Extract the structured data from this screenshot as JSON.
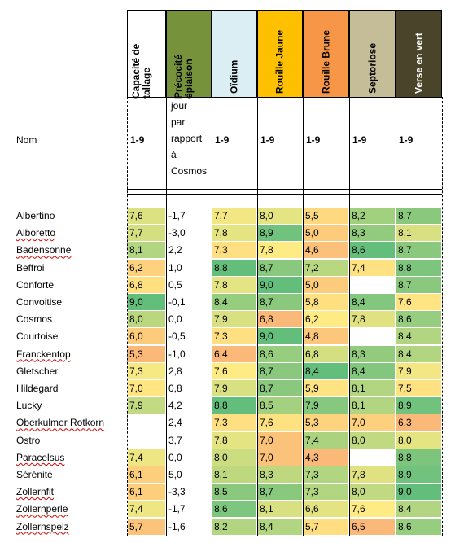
{
  "header": {
    "name_label": "Nom",
    "columns": [
      {
        "key": "tallage",
        "label": "Capacité de tallage",
        "bg": "#ffffff",
        "fg": "#000000"
      },
      {
        "key": "precocite",
        "label": "Précocité épiaison",
        "bg": "#76933c",
        "fg": "#000000"
      },
      {
        "key": "oidium",
        "label": "Oïdium",
        "bg": "#daeef3",
        "fg": "#000000"
      },
      {
        "key": "rouille_jaune",
        "label": "Rouille Jaune",
        "bg": "#ffc000",
        "fg": "#000000"
      },
      {
        "key": "rouille_brune",
        "label": "Rouille Brune",
        "bg": "#f79646",
        "fg": "#000000"
      },
      {
        "key": "septoriose",
        "label": "Septoriose",
        "bg": "#c4bd97",
        "fg": "#000000"
      },
      {
        "key": "verse",
        "label": "Verse en vert",
        "bg": "#4a452a",
        "fg": "#ffffff"
      }
    ],
    "units": [
      "1-9",
      "jour par rapport à Cosmos",
      "1-9",
      "1-9",
      "1-9",
      "1-9",
      "1-9"
    ],
    "units_precocite_lines": [
      "jour",
      "par",
      "rapport",
      "à",
      "Cosmos"
    ]
  },
  "rows": [
    {
      "name": "Albertino",
      "spell": false,
      "tallage": "7,6",
      "precocite": "-1,7",
      "oidium": "7,7",
      "rouille_jaune": "8,0",
      "rouille_brune": "5,5",
      "septoriose": "8,2",
      "verse": "8,7"
    },
    {
      "name": "Alboretto",
      "spell": true,
      "tallage": "7,7",
      "precocite": "-3,0",
      "oidium": "7,8",
      "rouille_jaune": "8,9",
      "rouille_brune": "5,0",
      "septoriose": "8,3",
      "verse": "8,1"
    },
    {
      "name": "Badensonne",
      "spell": true,
      "tallage": "8,1",
      "precocite": "2,2",
      "oidium": "7,3",
      "rouille_jaune": "7,8",
      "rouille_brune": "4,6",
      "septoriose": "8,6",
      "verse": "8,7"
    },
    {
      "name": "Beffroi",
      "spell": false,
      "tallage": "6,2",
      "precocite": "1,0",
      "oidium": "8,8",
      "rouille_jaune": "8,7",
      "rouille_brune": "7,2",
      "septoriose": "7,4",
      "verse": "8,8"
    },
    {
      "name": "Conforte",
      "spell": false,
      "tallage": "6,8",
      "precocite": "0,5",
      "oidium": "7,8",
      "rouille_jaune": "9,0",
      "rouille_brune": "5,0",
      "septoriose": "",
      "verse": "8,7"
    },
    {
      "name": "Convoitise",
      "spell": false,
      "tallage": "9,0",
      "precocite": "-0,1",
      "oidium": "8,4",
      "rouille_jaune": "8,7",
      "rouille_brune": "5,8",
      "septoriose": "8,4",
      "verse": "7,6"
    },
    {
      "name": "Cosmos",
      "spell": false,
      "tallage": "8,0",
      "precocite": "0,0",
      "oidium": "7,9",
      "rouille_jaune": "6,8",
      "rouille_brune": "6,2",
      "septoriose": "7,8",
      "verse": "8,6"
    },
    {
      "name": "Courtoise",
      "spell": false,
      "tallage": "6,0",
      "precocite": "-0,5",
      "oidium": "7,3",
      "rouille_jaune": "9,0",
      "rouille_brune": "4,8",
      "septoriose": "",
      "verse": "8,4"
    },
    {
      "name": "Franckentop",
      "spell": true,
      "tallage": "5,3",
      "precocite": "-1,0",
      "oidium": "6,4",
      "rouille_jaune": "8,6",
      "rouille_brune": "6,8",
      "septoriose": "8,3",
      "verse": "8,4"
    },
    {
      "name": "Gletscher",
      "spell": false,
      "tallage": "7,3",
      "precocite": "2,8",
      "oidium": "7,6",
      "rouille_jaune": "8,7",
      "rouille_brune": "8,4",
      "septoriose": "8,4",
      "verse": "7,9"
    },
    {
      "name": "Hildegard",
      "spell": false,
      "tallage": "7,0",
      "precocite": "0,8",
      "oidium": "7,9",
      "rouille_jaune": "8,7",
      "rouille_brune": "5,9",
      "septoriose": "8,1",
      "verse": "7,5"
    },
    {
      "name": "Lucky",
      "spell": false,
      "tallage": "7,9",
      "precocite": "4,2",
      "oidium": "8,8",
      "rouille_jaune": "8,5",
      "rouille_brune": "7,9",
      "septoriose": "8,1",
      "verse": "8,9"
    },
    {
      "name": "Oberkulmer Rotkorn",
      "spell": true,
      "tallage": "",
      "precocite": "2,4",
      "oidium": "7,3",
      "rouille_jaune": "7,6",
      "rouille_brune": "5,3",
      "septoriose": "7,0",
      "verse": "6,3"
    },
    {
      "name": "Ostro",
      "spell": false,
      "tallage": "",
      "precocite": "3,7",
      "oidium": "7,8",
      "rouille_jaune": "7,0",
      "rouille_brune": "7,4",
      "septoriose": "8,0",
      "verse": "8,0"
    },
    {
      "name": "Paracelsus",
      "spell": true,
      "tallage": "7,4",
      "precocite": "0,0",
      "oidium": "8,0",
      "rouille_jaune": "7,0",
      "rouille_brune": "4,3",
      "septoriose": "",
      "verse": "8,8"
    },
    {
      "name": "Sérénité",
      "spell": false,
      "tallage": "6,1",
      "precocite": "5,0",
      "oidium": "8,1",
      "rouille_jaune": "8,3",
      "rouille_brune": "7,3",
      "septoriose": "7,8",
      "verse": "8,9"
    },
    {
      "name": "Zollernfit",
      "spell": true,
      "tallage": "6,1",
      "precocite": "-3,3",
      "oidium": "8,5",
      "rouille_jaune": "8,7",
      "rouille_brune": "7,3",
      "septoriose": "8,0",
      "verse": "9,0"
    },
    {
      "name": "Zollernperle",
      "spell": true,
      "tallage": "7,4",
      "precocite": "-1,7",
      "oidium": "8,6",
      "rouille_jaune": "8,1",
      "rouille_brune": "6,6",
      "septoriose": "7,6",
      "verse": "8,4"
    },
    {
      "name": "Zollernspelz",
      "spell": true,
      "tallage": "5,7",
      "precocite": "-1,6",
      "oidium": "8,2",
      "rouille_jaune": "8,4",
      "rouille_brune": "5,7",
      "septoriose": "6,5",
      "verse": "8,6"
    }
  ]
}
